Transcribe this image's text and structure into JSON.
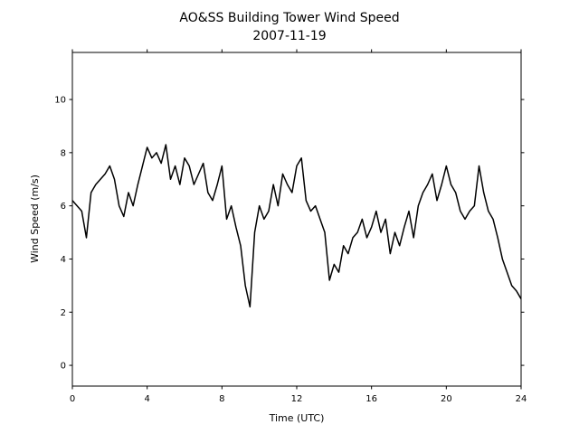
{
  "chart_data": {
    "type": "line",
    "title": "AO&SS Building Tower Wind Speed",
    "subtitle": "2007-11-19",
    "xlabel": "Time (UTC)",
    "ylabel": "Wind Speed (m/s)",
    "x": [
      0,
      0.25,
      0.5,
      0.75,
      1,
      1.25,
      1.5,
      1.75,
      2,
      2.25,
      2.5,
      2.75,
      3,
      3.25,
      3.5,
      3.75,
      4,
      4.25,
      4.5,
      4.75,
      5,
      5.25,
      5.5,
      5.75,
      6,
      6.25,
      6.5,
      6.75,
      7,
      7.25,
      7.5,
      7.75,
      8,
      8.25,
      8.5,
      8.75,
      9,
      9.25,
      9.5,
      9.75,
      10,
      10.25,
      10.5,
      10.75,
      11,
      11.25,
      11.5,
      11.75,
      12,
      12.25,
      12.5,
      12.75,
      13,
      13.25,
      13.5,
      13.75,
      14,
      14.25,
      14.5,
      14.75,
      15,
      15.25,
      15.5,
      15.75,
      16,
      16.25,
      16.5,
      16.75,
      17,
      17.25,
      17.5,
      17.75,
      18,
      18.25,
      18.5,
      18.75,
      19,
      19.25,
      19.5,
      19.75,
      20,
      20.25,
      20.5,
      20.75,
      21,
      21.25,
      21.5,
      21.75,
      22,
      22.25,
      22.5,
      22.75,
      23,
      23.25,
      23.5,
      23.75,
      24
    ],
    "series": [
      {
        "name": "Wind Speed",
        "color": "#000000",
        "values": [
          6.2,
          6.0,
          5.8,
          4.8,
          6.5,
          6.8,
          7.0,
          7.2,
          7.5,
          7.0,
          6.0,
          5.6,
          6.5,
          6.0,
          6.8,
          7.5,
          8.2,
          7.8,
          8.0,
          7.6,
          8.3,
          7.0,
          7.5,
          6.8,
          7.8,
          7.5,
          6.8,
          7.2,
          7.6,
          6.5,
          6.2,
          6.8,
          7.5,
          5.5,
          6.0,
          5.2,
          4.5,
          3.0,
          2.2,
          5.0,
          6.0,
          5.5,
          5.8,
          6.8,
          6.0,
          7.2,
          6.8,
          6.5,
          7.5,
          7.8,
          6.2,
          5.8,
          6.0,
          5.5,
          5.0,
          3.2,
          3.8,
          3.5,
          4.5,
          4.2,
          4.8,
          5.0,
          5.5,
          4.8,
          5.2,
          5.8,
          5.0,
          5.5,
          4.2,
          5.0,
          4.5,
          5.2,
          5.8,
          4.8,
          6.0,
          6.5,
          6.8,
          7.2,
          6.2,
          6.8,
          7.5,
          6.8,
          6.5,
          5.8,
          5.5,
          5.8,
          6.0,
          7.5,
          6.5,
          5.8,
          5.5,
          4.8,
          4.0,
          3.5,
          3.0,
          2.8,
          2.5
        ]
      }
    ],
    "xlim": [
      0,
      24
    ],
    "xticks": [
      0,
      4,
      8,
      12,
      16,
      20,
      24
    ],
    "ylim": [
      -0.78,
      11.77
    ],
    "yticks": [
      0,
      2,
      4,
      6,
      8,
      10
    ],
    "grid": false
  }
}
